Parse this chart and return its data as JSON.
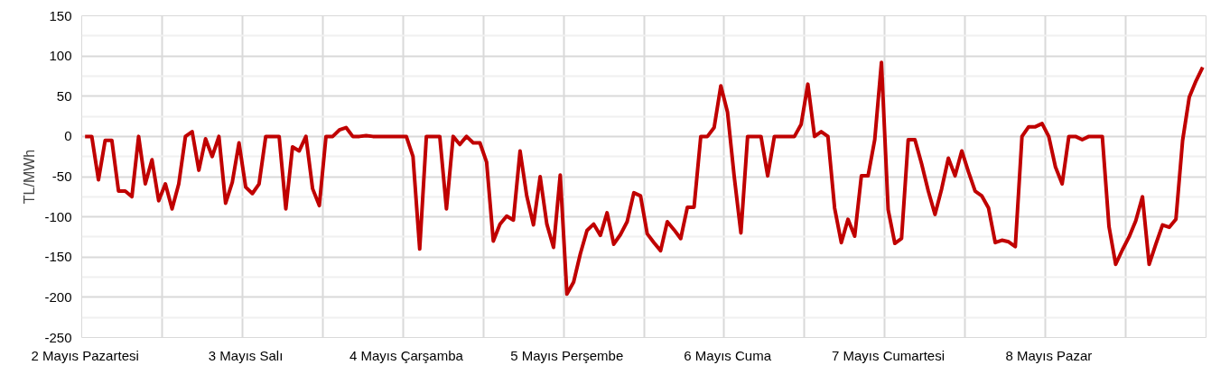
{
  "chart_data": {
    "type": "line",
    "ylabel": "TL/MWh",
    "categories": [
      "2 Mayıs Pazartesi",
      null,
      null,
      null,
      null,
      null,
      null,
      null,
      null,
      null,
      null,
      null,
      null,
      null,
      null,
      null,
      null,
      null,
      null,
      null,
      null,
      null,
      null,
      null,
      "3 Mayıs Salı",
      null,
      null,
      null,
      null,
      null,
      null,
      null,
      null,
      null,
      null,
      null,
      null,
      null,
      null,
      null,
      null,
      null,
      null,
      null,
      null,
      null,
      null,
      null,
      "4 Mayıs Çarşamba",
      null,
      null,
      null,
      null,
      null,
      null,
      null,
      null,
      null,
      null,
      null,
      null,
      null,
      null,
      null,
      null,
      null,
      null,
      null,
      null,
      null,
      null,
      null,
      "5 Mayıs Perşembe",
      null,
      null,
      null,
      null,
      null,
      null,
      null,
      null,
      null,
      null,
      null,
      null,
      null,
      null,
      null,
      null,
      null,
      null,
      null,
      null,
      null,
      null,
      null,
      "6 Mayıs Cuma",
      null,
      null,
      null,
      null,
      null,
      null,
      null,
      null,
      null,
      null,
      null,
      null,
      null,
      null,
      null,
      null,
      null,
      null,
      null,
      null,
      null,
      null,
      null,
      "7 Mayıs Cumartesi",
      null,
      null,
      null,
      null,
      null,
      null,
      null,
      null,
      null,
      null,
      null,
      null,
      null,
      null,
      null,
      null,
      null,
      null,
      null,
      null,
      null,
      null,
      null,
      "8 Mayıs Pazar",
      null,
      null,
      null,
      null,
      null,
      null,
      null,
      null,
      null,
      null,
      null,
      null,
      null,
      null,
      null,
      null,
      null,
      null,
      null,
      null,
      null,
      null,
      null
    ],
    "series": [
      {
        "color": "#c00000",
        "values": [
          0,
          0,
          -54,
          -5,
          -5,
          -68,
          -68,
          -75,
          0,
          -59,
          -29,
          -80,
          -59,
          -90,
          -59,
          0,
          6,
          -42,
          -3,
          -25,
          0,
          -83,
          -57,
          -8,
          -63,
          -71,
          -59,
          0,
          0,
          0,
          -90,
          -13,
          -18,
          0,
          -65,
          -86,
          0,
          0,
          8,
          11,
          0,
          0,
          1,
          0,
          0,
          0,
          0,
          0,
          0,
          -25,
          -140,
          0,
          0,
          0,
          -90,
          0,
          -10,
          0,
          -8,
          -8,
          -32,
          -130,
          -109,
          -99,
          -104,
          -18,
          -74,
          -110,
          -50,
          -109,
          -138,
          -48,
          -196,
          -181,
          -146,
          -117,
          -109,
          -123,
          -95,
          -134,
          -122,
          -106,
          -70,
          -74,
          -121,
          -132,
          -142,
          -106,
          -116,
          -127,
          -88,
          -88,
          0,
          0,
          11,
          63,
          30,
          -50,
          -120,
          0,
          0,
          0,
          -49,
          0,
          0,
          0,
          0,
          15,
          65,
          0,
          6,
          0,
          -89,
          -132,
          -103,
          -124,
          -49,
          -49,
          -4,
          92,
          -91,
          -133,
          -127,
          -4,
          -4,
          -34,
          -68,
          -97,
          -65,
          -27,
          -49,
          -18,
          -44,
          -68,
          -74,
          -89,
          -132,
          -129,
          -131,
          -137,
          0,
          12,
          12,
          16,
          0,
          -38,
          -59,
          0,
          0,
          -4,
          0,
          0,
          0,
          -112,
          -159,
          -141,
          -125,
          -105,
          -75,
          -159,
          -134,
          -110,
          -113,
          -103,
          -5,
          49,
          69,
          86
        ]
      }
    ],
    "ylim": [
      -250,
      150
    ],
    "yticks": [
      -250,
      -200,
      -150,
      -100,
      -50,
      0,
      50,
      100,
      150
    ],
    "grid": true,
    "marker": "none",
    "line_style": "solid"
  }
}
